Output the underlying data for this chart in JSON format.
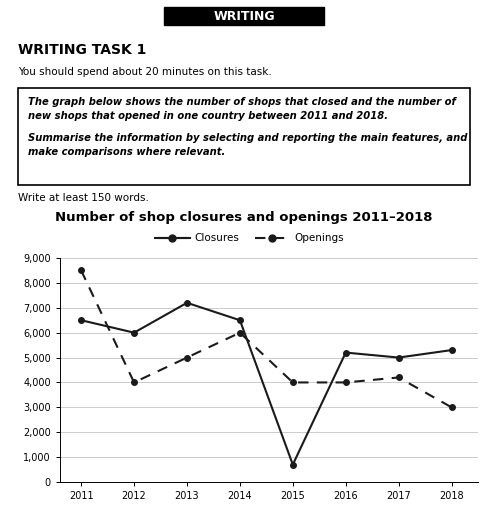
{
  "years": [
    2011,
    2012,
    2013,
    2014,
    2015,
    2016,
    2017,
    2018
  ],
  "closures": [
    6500,
    6000,
    7200,
    6500,
    700,
    5200,
    5000,
    5300
  ],
  "openings": [
    8500,
    4000,
    5000,
    6000,
    4000,
    4000,
    4200,
    3000
  ],
  "title": "Number of shop closures and openings 2011–2018",
  "ylabel_ticks": [
    0,
    1000,
    2000,
    3000,
    4000,
    5000,
    6000,
    7000,
    8000,
    9000
  ],
  "header_text": "WRITING",
  "task_title": "WRITING TASK 1",
  "instruction1": "You should spend about 20 minutes on this task.",
  "box_line1": "The graph below shows the number of shops that closed and the number of",
  "box_line2": "new shops that opened in one country between 2011 and 2018.",
  "box_line3": "Summarise the information by selecting and reporting the main features, and",
  "box_line4": "make comparisons where relevant.",
  "footer_text": "Write at least 150 words.",
  "legend_closures": "Closures",
  "legend_openings": "Openings",
  "bg_color": "#ffffff",
  "line_color": "#1a1a1a",
  "grid_color": "#cccccc"
}
